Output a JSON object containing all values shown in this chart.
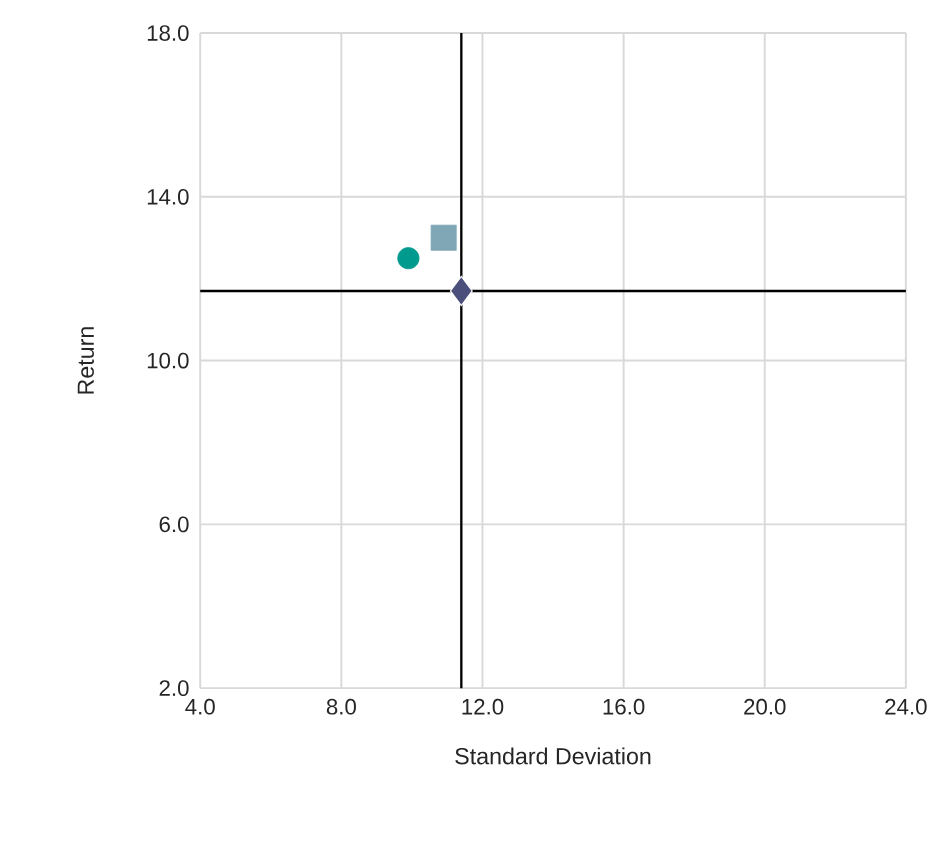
{
  "chart_data": {
    "type": "scatter",
    "xlabel": "Standard Deviation",
    "ylabel": "Return",
    "xlim": [
      4,
      24
    ],
    "ylim": [
      2,
      18
    ],
    "xticks": [
      {
        "value": 4,
        "label": "4.0"
      },
      {
        "value": 8,
        "label": "8.0"
      },
      {
        "value": 12,
        "label": "12.0"
      },
      {
        "value": 16,
        "label": "16.0"
      },
      {
        "value": 20,
        "label": "20.0"
      },
      {
        "value": 24,
        "label": "24.0"
      }
    ],
    "yticks": [
      {
        "value": 2,
        "label": "2.0"
      },
      {
        "value": 6,
        "label": "6.0"
      },
      {
        "value": 10,
        "label": "10.0"
      },
      {
        "value": 14,
        "label": "14.0"
      },
      {
        "value": 18,
        "label": "18.0"
      }
    ],
    "grid": true,
    "ref_lines": [
      {
        "axis": "x",
        "value": 11.4,
        "color": "#000000"
      },
      {
        "axis": "y",
        "value": 11.7,
        "color": "#000000"
      }
    ],
    "series": [
      {
        "color": "#009a8e",
        "marker": "circle",
        "x": [
          9.9
        ],
        "values": [
          12.5
        ]
      },
      {
        "color": "#7fa7b5",
        "marker": "square",
        "x": [
          10.9
        ],
        "values": [
          13.0
        ]
      },
      {
        "color": "#4b4f7c",
        "marker": "diamond",
        "x": [
          11.4
        ],
        "values": [
          11.7
        ]
      }
    ]
  }
}
